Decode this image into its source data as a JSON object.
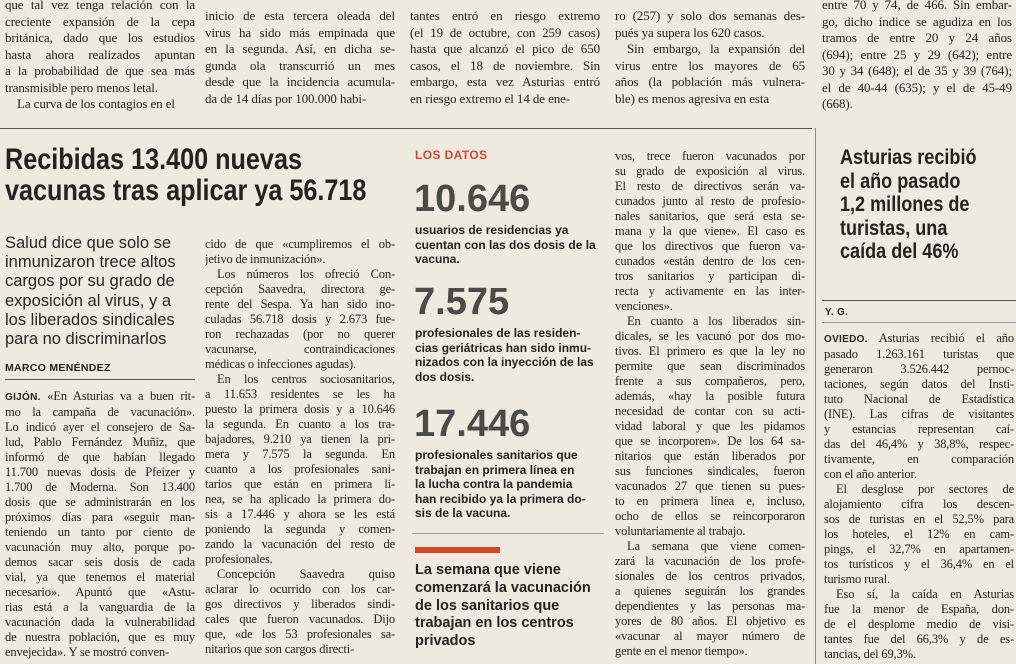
{
  "top_columns": [
    [
      [
        "que tal vez tenga relación con la",
        "creciente expansión de la cepa",
        "británica, dado que los estudios",
        "hasta ahora realizados apuntan",
        "a la probabilidad de que sea más",
        "transmisible pero menos letal."
      ],
      [
        "La curva de los contagios en el"
      ]
    ],
    [
      [
        "inicio de esta tercera oleada del",
        "virus ha sido más empinada que",
        "en la segunda. Así, en dicha se-",
        "gunda ola transcurrió un mes",
        "desde que la incidencia acumula-",
        "da de 14 días por 100.000 habi-"
      ]
    ],
    [
      [
        "tantes entró en riesgo extremo",
        "(el 19 de octubre, con 259 casos)",
        "hasta que alcanzó el pico de 650",
        "casos, el 18 de noviembre. Sin",
        "embargo, esta vez Asturias entró",
        "en riesgo extremo el 14 de ene-"
      ]
    ],
    [
      [
        "ro (257) y solo dos semanas des-",
        "pués ya supera los 620 casos."
      ],
      [
        "Sin embargo, la expansión del",
        "virus entre los mayores de 65",
        "años (la población más vulnera-",
        "ble) es menos agresiva en esta"
      ]
    ],
    [
      [
        "entre 70 y 74, de 466. Sin embar-",
        "go, dicho índice se agudiza en los",
        "tramos de entre 20 y 24 años",
        "(694); entre 25 y 29 (642); entre",
        "30 y 34 (648); el de 35 y 39 (764);",
        "el de 40-44 (635); y el de 45-49",
        "(668)."
      ]
    ]
  ],
  "main_article": {
    "headline": [
      "Recibidas 13.400 nuevas",
      "vacunas tras aplicar ya 56.718"
    ],
    "subhead": [
      "Salud dice que solo se",
      "inmunizaron trece altos",
      "cargos por su grado de",
      "exposición al virus, y a",
      "los liberados sindicales",
      "para no discriminarlos"
    ],
    "byline": "MARCO MENÉNDEZ",
    "dateline": "GIJÓN.",
    "columns": [
      [
        [
          " «En Asturias va a buen rit-",
          "mo la campaña de vacunación».",
          "Lo indicó ayer el consejero de Sa-",
          "lud, Pablo Fernández Muñiz, que",
          "informó de que habían llegado",
          "11.700 nuevas dosis de Pfeizer y",
          "1.700 de Moderna. Son 13.400",
          "dosis que se administrarán en los",
          "próximos días para «seguir man-",
          "teniendo un tanto por ciento de",
          "vacunación muy alto, porque po-",
          "demos sacar seis dosis de cada",
          "vial, ya que tenemos el material",
          "necesario». Apuntó que «Astu-",
          "rias está a la vanguardia de la",
          "vacunación dada la vulnerabilidad",
          "de nuestra población, que es muy",
          "envejecida». Y se mostró conven-"
        ]
      ],
      [
        [
          "cido de que «cumpliremos el ob-",
          "jetivo de inmunización»."
        ],
        [
          "Los números los ofreció Con-",
          "cepción Saavedra, directora ge-",
          "rente del Sespa. Ya han sido ino-",
          "culadas 56.718 dosis y 2.673 fue-",
          "ron rechazadas (por no querer",
          "vacunarse, contraindicaciones",
          "médicas o infecciones agudas)."
        ],
        [
          "En los centros sociosanitarios,",
          "a 11.653 residentes se les ha",
          "puesto la primera dosis y a 10.646",
          "la segunda. En cuanto a los tra-",
          "bajadores, 9.210 ya tienen la pri-",
          "mera y 7.575 la segunda. En",
          "cuanto a los profesionales sani-",
          "tarios que están en primera lí-",
          "nea, se ha aplicado la primera do-",
          "sis a 17.446 y ahora se les está",
          "poniendo la segunda y comen-",
          "zando la vacunación del resto de",
          "profesionales."
        ],
        [
          "Concepción Saavedra quiso",
          "aclarar lo ocurrido con los car-",
          "gos directivos y liberados sindi-",
          "cales que fueron vacunados. Dijo",
          "que, «de los 53 profesionales sa-",
          "nitarios que son cargos directi-"
        ]
      ],
      [
        [
          "vos, trece fueron vacunados por",
          "su grado de exposición al virus.",
          "El resto de directivos serán va-",
          "cunados junto al resto de profesio-",
          "nales sanitarios, que será esta se-",
          "mana y la que viene». El caso es",
          "que los directivos que fueron va-",
          "cunados «están dentro de los cen-",
          "tros sanitarios y participan di-",
          "recta y activamente en las inter-",
          "venciones»."
        ],
        [
          "En cuanto a los liberados sin-",
          "dicales, se les vacunó por dos mo-",
          "tivos. El primero es que la ley no",
          "permite que sean discriminados",
          "frente a sus compañeros, pero,",
          "además, «hay la posible futura",
          "necesidad de contar con su acti-",
          "vidad laboral y que les pidamos",
          "que se incorporen». De los 64 sa-",
          "nitarios que están liberados por",
          "sus funciones sindicales, fueron",
          "vacunados 27 que tienen su pues-",
          "to en primera línea e, incluso,",
          "ocho de ellos se reincorporaron",
          "voluntariamente al trabajo."
        ],
        [
          "La semana que viene comen-",
          "zará la vacunación de los profe-",
          "sionales de los centros privados,",
          "a quienes seguirán los grandes",
          "dependientes y las personas ma-",
          "yores de 80 años. El objetivo es",
          "«vacunar al mayor número de",
          "gente en el menor tiempo»."
        ]
      ]
    ]
  },
  "data_box": {
    "label": "LOS DATOS",
    "items": [
      {
        "figure": "10.646",
        "text": [
          "usuarios de residencias ya",
          "cuentan con las dos dosis de la",
          "vacuna."
        ]
      },
      {
        "figure": "7.575",
        "text": [
          "profesionales de las residen-",
          "cias geriátricas han sido inmu-",
          "nizados con la inyección de las",
          "dos dosis."
        ]
      },
      {
        "figure": "17.446",
        "text": [
          "profesionales sanitarios que",
          "trabajan en primera línea en",
          "la lucha contra la pandemia",
          "han recibido ya la primera do-",
          "sis de la vacuna."
        ]
      }
    ]
  },
  "pullquote": [
    "La semana que viene",
    "comenzará la vacunación",
    "de los sanitarios que",
    "trabajan en los centros",
    "privados"
  ],
  "sidebar": {
    "headline": [
      "Asturias recibió",
      "el año pasado",
      "1,2 millones de",
      "turistas, una",
      "caída del 46%"
    ],
    "byline": "Y. G.",
    "dateline": "OVIEDO.",
    "body": [
      [
        " Asturias recibió el año",
        "pasado 1.263.161 turistas que",
        "generaron 3.526.442 pernoc-",
        "taciones, según datos del Insti-",
        "tuto Nacional de Estadística",
        "(INE). Las cifras de visitantes",
        "y estancias representan caí-",
        "das del 46,4% y 38,8%, respec-",
        "tivamente, en comparación",
        "con el año anterior."
      ],
      [
        "El desglose por sectores de",
        "alojamiento cifra los descen-",
        "sos de turistas en el 52,5% para",
        "los hoteles, el 12% en cam-",
        "pings, el 32,7% en apartamen-",
        "tos turísticos y el 36,4% en el",
        "turismo rural."
      ],
      [
        "Eso sí, la caída en Asturias",
        "fue la menor de España, don-",
        "de el desplome medio de visi-",
        "tantes fue del 66,3% y de es-",
        "tancias, del 69,3%."
      ]
    ]
  }
}
